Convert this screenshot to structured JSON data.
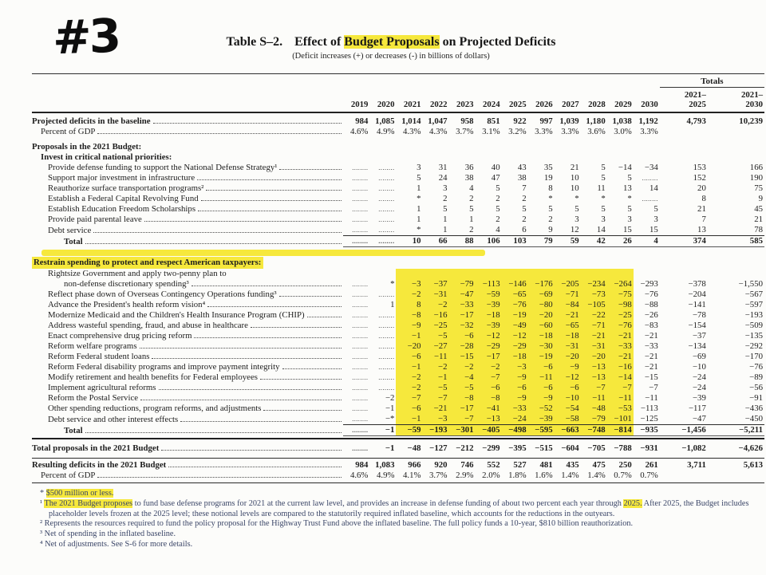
{
  "colors": {
    "highlight": "#f6e83c",
    "paper": "#fcfcfa",
    "footnote_text": "#3b4668"
  },
  "page": {
    "marker": "#3"
  },
  "title": {
    "label": "Table S–2.",
    "pre": "Effect of ",
    "highlighted": "Budget Proposals",
    "post": " on Projected Deficits",
    "subtitle": "(Deficit increases (+) or decreases (-) in billions of dollars)"
  },
  "table": {
    "totals_label": "Totals",
    "year_columns": [
      "2019",
      "2020",
      "2021",
      "2022",
      "2023",
      "2024",
      "2025",
      "2026",
      "2027",
      "2028",
      "2029",
      "2030"
    ],
    "totals_columns": [
      "2021–\n2025",
      "2021–\n2030"
    ],
    "rows": [
      {
        "label": "Projected deficits in the baseline",
        "indent": 0,
        "bold": true,
        "dots": true,
        "values": [
          "984",
          "1,085",
          "1,014",
          "1,047",
          "958",
          "851",
          "922",
          "997",
          "1,039",
          "1,180",
          "1,038",
          "1,192",
          "4,793",
          "10,239"
        ]
      },
      {
        "label": "Percent of GDP",
        "indent": 1,
        "dots": true,
        "values": [
          "4.6%",
          "4.9%",
          "4.3%",
          "4.3%",
          "3.7%",
          "3.1%",
          "3.2%",
          "3.3%",
          "3.3%",
          "3.6%",
          "3.0%",
          "3.3%",
          "",
          ""
        ]
      },
      {
        "type": "gap"
      },
      {
        "label": "Proposals in the 2021 Budget:",
        "indent": 0,
        "bold": true,
        "section": true
      },
      {
        "label": "Invest in critical national priorities:",
        "indent": 1,
        "bold": true,
        "section": true
      },
      {
        "label": "Provide defense funding to support the National Defense Strategy¹",
        "indent": 2,
        "dots": true,
        "values": [
          ".",
          ".",
          "3",
          "31",
          "36",
          "40",
          "43",
          "35",
          "21",
          "5",
          "−14",
          "−34",
          "153",
          "166"
        ]
      },
      {
        "label": "Support major investment in infrastructure",
        "indent": 2,
        "dots": true,
        "values": [
          ".",
          ".",
          "5",
          "24",
          "38",
          "47",
          "38",
          "19",
          "10",
          "5",
          "5",
          ".",
          "152",
          "190"
        ]
      },
      {
        "label": "Reauthorize surface transportation programs²",
        "indent": 2,
        "dots": true,
        "values": [
          ".",
          ".",
          "1",
          "3",
          "4",
          "5",
          "7",
          "8",
          "10",
          "11",
          "13",
          "14",
          "20",
          "75"
        ]
      },
      {
        "label": "Establish a Federal Capital Revolving Fund",
        "indent": 2,
        "dots": true,
        "values": [
          ".",
          ".",
          "*",
          "2",
          "2",
          "2",
          "2",
          "*",
          "*",
          "*",
          "*",
          ".",
          "8",
          "9"
        ]
      },
      {
        "label": "Establish Education Freedom Scholarships",
        "indent": 2,
        "dots": true,
        "values": [
          ".",
          ".",
          "1",
          "5",
          "5",
          "5",
          "5",
          "5",
          "5",
          "5",
          "5",
          "5",
          "21",
          "45"
        ]
      },
      {
        "label": "Provide paid parental leave",
        "indent": 2,
        "dots": true,
        "values": [
          ".",
          ".",
          "1",
          "1",
          "1",
          "2",
          "2",
          "2",
          "3",
          "3",
          "3",
          "3",
          "7",
          "21"
        ]
      },
      {
        "label": "Debt service",
        "indent": 2,
        "dots": true,
        "values": [
          ".",
          ".",
          "*",
          "1",
          "2",
          "4",
          "6",
          "9",
          "12",
          "14",
          "15",
          "15",
          "13",
          "78"
        ]
      },
      {
        "label": "Total",
        "indent": 3,
        "bold": true,
        "dots": true,
        "total": true,
        "values": [
          ".",
          ".",
          "10",
          "66",
          "88",
          "106",
          "103",
          "79",
          "59",
          "42",
          "26",
          "4",
          "374",
          "585"
        ]
      },
      {
        "type": "stripe"
      },
      {
        "label": "Restrain spending to protect and respect American taxpayers:",
        "indent": 0,
        "bold": true,
        "section": true,
        "label_highlight": true
      },
      {
        "label": "Rightsize Government and apply two-penny plan to",
        "indent": 2,
        "section": true,
        "highlight": true
      },
      {
        "label": "non-defense discretionary spending³",
        "indent": 3,
        "dots": true,
        "highlight": true,
        "values": [
          ".",
          "*",
          "−3",
          "−37",
          "−79",
          "−113",
          "−146",
          "−176",
          "−205",
          "−234",
          "−264",
          "−293",
          "−378",
          "−1,550"
        ]
      },
      {
        "label": "Reflect phase down of Overseas Contingency Operations funding³",
        "indent": 2,
        "dots": true,
        "highlight": true,
        "values": [
          ".",
          ".",
          "−2",
          "−31",
          "−47",
          "−59",
          "−65",
          "−69",
          "−71",
          "−73",
          "−75",
          "−76",
          "−204",
          "−567"
        ]
      },
      {
        "label": "Advance the President's health reform vision⁴",
        "indent": 2,
        "dots": true,
        "highlight": true,
        "values": [
          ".",
          "1",
          "8",
          "−2",
          "−33",
          "−39",
          "−76",
          "−80",
          "−84",
          "−105",
          "−98",
          "−88",
          "−141",
          "−597"
        ]
      },
      {
        "label": "Modernize Medicaid and the Children's Health Insurance Program (CHIP)",
        "indent": 2,
        "dots": true,
        "highlight": true,
        "values": [
          ".",
          ".",
          "−8",
          "−16",
          "−17",
          "−18",
          "−19",
          "−20",
          "−21",
          "−22",
          "−25",
          "−26",
          "−78",
          "−193"
        ]
      },
      {
        "label": "Address wasteful spending, fraud, and abuse in healthcare",
        "indent": 2,
        "dots": true,
        "highlight": true,
        "values": [
          ".",
          ".",
          "−9",
          "−25",
          "−32",
          "−39",
          "−49",
          "−60",
          "−65",
          "−71",
          "−76",
          "−83",
          "−154",
          "−509"
        ]
      },
      {
        "label": "Enact comprehensive drug pricing reform",
        "indent": 2,
        "dots": true,
        "highlight": true,
        "values": [
          ".",
          ".",
          "−1",
          "−5",
          "−6",
          "−12",
          "−12",
          "−18",
          "−18",
          "−21",
          "−21",
          "−21",
          "−37",
          "−135"
        ]
      },
      {
        "label": "Reform welfare programs",
        "indent": 2,
        "dots": true,
        "highlight": true,
        "values": [
          ".",
          ".",
          "−20",
          "−27",
          "−28",
          "−29",
          "−29",
          "−30",
          "−31",
          "−31",
          "−33",
          "−33",
          "−134",
          "−292"
        ]
      },
      {
        "label": "Reform Federal student loans",
        "indent": 2,
        "dots": true,
        "highlight": true,
        "values": [
          ".",
          ".",
          "−6",
          "−11",
          "−15",
          "−17",
          "−18",
          "−19",
          "−20",
          "−20",
          "−21",
          "−21",
          "−69",
          "−170"
        ]
      },
      {
        "label": "Reform Federal disability programs and improve payment integrity",
        "indent": 2,
        "dots": true,
        "highlight": true,
        "values": [
          ".",
          ".",
          "−1",
          "−2",
          "−2",
          "−2",
          "−3",
          "−6",
          "−9",
          "−13",
          "−16",
          "−21",
          "−10",
          "−76"
        ]
      },
      {
        "label": "Modify retirement and health benefits for Federal employees",
        "indent": 2,
        "dots": true,
        "highlight": true,
        "values": [
          ".",
          ".",
          "−2",
          "−1",
          "−4",
          "−7",
          "−9",
          "−11",
          "−12",
          "−13",
          "−14",
          "−15",
          "−24",
          "−89"
        ]
      },
      {
        "label": "Implement agricultural reforms",
        "indent": 2,
        "dots": true,
        "highlight": true,
        "values": [
          ".",
          ".",
          "−2",
          "−5",
          "−5",
          "−6",
          "−6",
          "−6",
          "−6",
          "−7",
          "−7",
          "−7",
          "−24",
          "−56"
        ]
      },
      {
        "label": "Reform the Postal Service",
        "indent": 2,
        "dots": true,
        "highlight": true,
        "values": [
          ".",
          "−2",
          "−7",
          "−7",
          "−8",
          "−8",
          "−9",
          "−9",
          "−10",
          "−11",
          "−11",
          "−11",
          "−39",
          "−91"
        ]
      },
      {
        "label": "Other spending reductions, program reforms, and adjustments",
        "indent": 2,
        "dots": true,
        "highlight": true,
        "values": [
          ".",
          "−1",
          "−6",
          "−21",
          "−17",
          "−41",
          "−33",
          "−52",
          "−54",
          "−48",
          "−53",
          "−113",
          "−117",
          "−436"
        ]
      },
      {
        "label": "Debt service and other interest effects",
        "indent": 2,
        "dots": true,
        "highlight": true,
        "values": [
          ".",
          "−*",
          "−1",
          "−3",
          "−7",
          "−13",
          "−24",
          "−39",
          "−58",
          "−79",
          "−101",
          "−125",
          "−47",
          "−450"
        ]
      },
      {
        "label": "Total",
        "indent": 3,
        "bold": true,
        "dots": true,
        "total": true,
        "highlight": true,
        "values": [
          ".",
          "−1",
          "−59",
          "−193",
          "−301",
          "−405",
          "−498",
          "−595",
          "−663",
          "−748",
          "−814",
          "−935",
          "−1,456",
          "−5,211"
        ]
      },
      {
        "type": "rule",
        "weight": 2
      },
      {
        "type": "gap2"
      },
      {
        "label": "Total proposals in the 2021 Budget",
        "indent": 0,
        "bold": true,
        "dots": true,
        "values": [
          ".",
          "−1",
          "−48",
          "−127",
          "−212",
          "−299",
          "−395",
          "−515",
          "−604",
          "−705",
          "−788",
          "−931",
          "−1,082",
          "−4,626"
        ]
      },
      {
        "type": "gap2"
      },
      {
        "type": "rule",
        "weight": 1
      },
      {
        "label": "Resulting deficits in the 2021 Budget",
        "indent": 0,
        "bold": true,
        "dots": true,
        "values": [
          "984",
          "1,083",
          "966",
          "920",
          "746",
          "552",
          "527",
          "481",
          "435",
          "475",
          "250",
          "261",
          "3,711",
          "5,613"
        ]
      },
      {
        "label": "Percent of GDP",
        "indent": 1,
        "dots": true,
        "values": [
          "4.6%",
          "4.9%",
          "4.1%",
          "3.7%",
          "2.9%",
          "2.0%",
          "1.8%",
          "1.6%",
          "1.4%",
          "1.4%",
          "0.7%",
          "0.7%",
          "",
          ""
        ]
      },
      {
        "type": "rule",
        "weight": 1
      }
    ]
  },
  "footnotes": [
    {
      "segments": [
        {
          "text": "* "
        },
        {
          "text": "$500 million or less.",
          "highlight": true
        }
      ]
    },
    {
      "segments": [
        {
          "text": "¹ "
        },
        {
          "text": "The 2021 Budget proposes",
          "highlight": true
        },
        {
          "text": " to fund base defense programs for 2021 at the current law level, and provides an increase in defense funding of about two percent each year through "
        },
        {
          "text": "2025.",
          "highlight": true
        },
        {
          "text": " After 2025, the Budget includes placeholder levels frozen at the 2025 level; these notional levels are compared to the statutorily required inflated baseline, which accounts for the reductions in the outyears."
        }
      ]
    },
    {
      "segments": [
        {
          "text": "² Represents the resources required to fund the policy proposal for the Highway Trust Fund above the inflated baseline. The full policy funds a 10-year, $810 billion reauthorization."
        }
      ]
    },
    {
      "segments": [
        {
          "text": "³ Net of spending in the inflated baseline."
        }
      ]
    },
    {
      "segments": [
        {
          "text": "⁴ Net of adjustments.  See S-6 for more details."
        }
      ]
    }
  ]
}
